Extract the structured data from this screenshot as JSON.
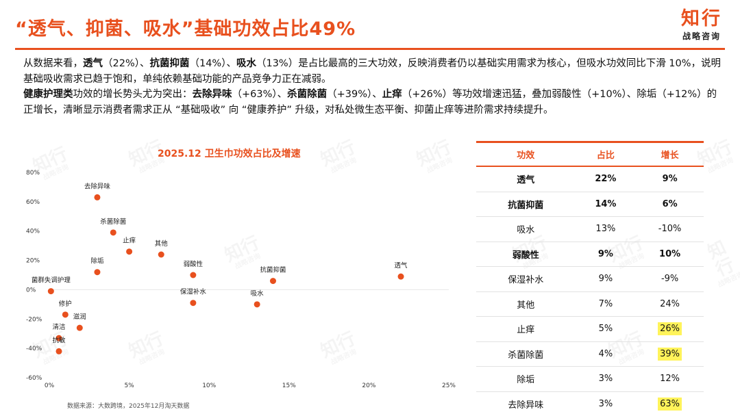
{
  "header": {
    "title": "“透气、抑菌、吸水”基础功效占比49%",
    "logo_main": "知行",
    "logo_sub": "战略咨询"
  },
  "summary": {
    "p1": [
      {
        "t": "从数据来看，",
        "b": false
      },
      {
        "t": "透气",
        "b": true
      },
      {
        "t": "（22%）、",
        "b": false
      },
      {
        "t": "抗菌抑菌",
        "b": true
      },
      {
        "t": "（14%）、",
        "b": false
      },
      {
        "t": "吸水",
        "b": true
      },
      {
        "t": "（13%）是占比最高的三大功效，反映消费者仍以基础实用需求为核心，但吸水功效同比下滑 10%，说明基础吸收需求已趋于饱和，单纯依赖基础功能的产品竞争力正在减弱。",
        "b": false
      }
    ],
    "p2": [
      {
        "t": "健康护理类",
        "b": true
      },
      {
        "t": "功效的增长势头尤为突出：",
        "b": false
      },
      {
        "t": "去除异味",
        "b": true
      },
      {
        "t": "（+63%）、",
        "b": false
      },
      {
        "t": "杀菌除菌",
        "b": true
      },
      {
        "t": "（+39%）、",
        "b": false
      },
      {
        "t": "止痒",
        "b": true
      },
      {
        "t": "（+26%）等功效增速迅猛，叠加弱酸性（+10%）、除垢（+12%）的正增长，清晰显示消费者需求正从 “基础吸收” 向 “健康养护” 升级，对私处微生态平衡、抑菌止痒等进阶需求持续提升。",
        "b": false
      }
    ]
  },
  "chart_data": {
    "type": "scatter",
    "title": "2025.12 卫生巾功效占比及增速",
    "xlabel": "",
    "ylabel": "",
    "xlim": [
      0,
      0.25
    ],
    "ylim": [
      -0.6,
      0.8
    ],
    "x_ticks": [
      0,
      0.05,
      0.1,
      0.15,
      0.2,
      0.25
    ],
    "x_tick_labels": [
      "0%",
      "5%",
      "10%",
      "15%",
      "20%",
      "25%"
    ],
    "y_ticks": [
      -0.6,
      -0.4,
      -0.2,
      0,
      0.2,
      0.4,
      0.6,
      0.8
    ],
    "y_tick_labels": [
      "-60%",
      "-40%",
      "-20%",
      "0%",
      "20%",
      "40%",
      "60%",
      "80%"
    ],
    "grid": false,
    "point_color": "#e8501e",
    "points": [
      {
        "label": "透气",
        "x": 0.22,
        "y": 0.09
      },
      {
        "label": "抗菌抑菌",
        "x": 0.14,
        "y": 0.06
      },
      {
        "label": "吸水",
        "x": 0.13,
        "y": -0.1
      },
      {
        "label": "弱酸性",
        "x": 0.09,
        "y": 0.1
      },
      {
        "label": "保湿补水",
        "x": 0.09,
        "y": -0.09
      },
      {
        "label": "其他",
        "x": 0.07,
        "y": 0.24
      },
      {
        "label": "止痒",
        "x": 0.05,
        "y": 0.26
      },
      {
        "label": "杀菌除菌",
        "x": 0.04,
        "y": 0.39
      },
      {
        "label": "除垢",
        "x": 0.03,
        "y": 0.12
      },
      {
        "label": "去除异味",
        "x": 0.03,
        "y": 0.63
      },
      {
        "label": "菌群失调护理",
        "x": 0.001,
        "y": -0.01
      },
      {
        "label": "修护",
        "x": 0.01,
        "y": -0.17
      },
      {
        "label": "滋润",
        "x": 0.019,
        "y": -0.26
      },
      {
        "label": "清洁",
        "x": 0.006,
        "y": -0.33
      },
      {
        "label": "抗敏",
        "x": 0.006,
        "y": -0.42
      }
    ]
  },
  "table": {
    "headers": [
      "功效",
      "占比",
      "增长"
    ],
    "rows": [
      {
        "name": "透气",
        "share": "22%",
        "growth": "9%",
        "bold": true,
        "hl": false
      },
      {
        "name": "抗菌抑菌",
        "share": "14%",
        "growth": "6%",
        "bold": true,
        "hl": false
      },
      {
        "name": "吸水",
        "share": "13%",
        "growth": "-10%",
        "bold": false,
        "hl": false
      },
      {
        "name": "弱酸性",
        "share": "9%",
        "growth": "10%",
        "bold": true,
        "hl": false
      },
      {
        "name": "保湿补水",
        "share": "9%",
        "growth": "-9%",
        "bold": false,
        "hl": false
      },
      {
        "name": "其他",
        "share": "7%",
        "growth": "24%",
        "bold": false,
        "hl": false
      },
      {
        "name": "止痒",
        "share": "5%",
        "growth": "26%",
        "bold": false,
        "hl": true
      },
      {
        "name": "杀菌除菌",
        "share": "4%",
        "growth": "39%",
        "bold": false,
        "hl": true
      },
      {
        "name": "除垢",
        "share": "3%",
        "growth": "12%",
        "bold": false,
        "hl": false
      },
      {
        "name": "去除异味",
        "share": "3%",
        "growth": "63%",
        "bold": false,
        "hl": true
      }
    ],
    "highlight_color": "#fff35a"
  },
  "footer": {
    "source": "数据来源：大数跨境，2025年12月淘天数据"
  },
  "colors": {
    "accent": "#e8501e"
  }
}
